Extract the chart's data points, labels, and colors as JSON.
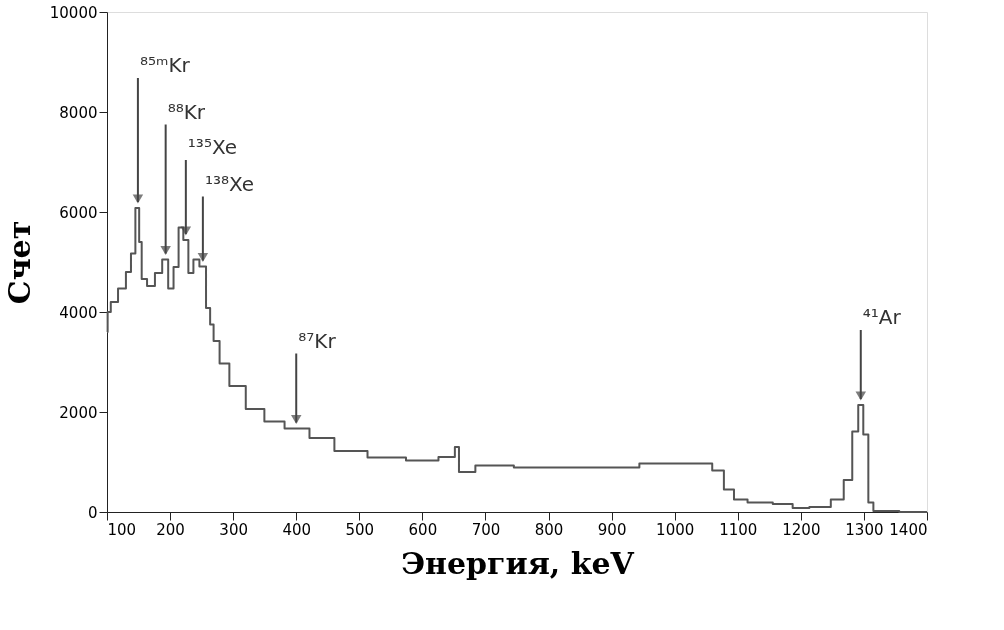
{
  "chart_data": {
    "type": "step",
    "xlabel": "Энергия, keV",
    "ylabel": "Счет",
    "xlim": [
      100,
      1400
    ],
    "ylim": [
      0,
      10000
    ],
    "xticks": [
      100,
      200,
      300,
      400,
      500,
      600,
      700,
      800,
      900,
      1000,
      1100,
      1200,
      1300,
      1400
    ],
    "yticks": [
      0,
      2000,
      4000,
      6000,
      8000,
      10000
    ],
    "grid": false,
    "marker": "none",
    "line_style": "solid",
    "series": [
      {
        "color": "#555555",
        "x": [
          100,
          102,
          110,
          125,
          135,
          141,
          149,
          153,
          157,
          170,
          182,
          193,
          201,
          210,
          217,
          225,
          233,
          241,
          252,
          262,
          265,
          273,
          284,
          304,
          336,
          363,
          400,
          442,
          479,
          547,
          601,
          650,
          653,
          663,
          705,
          785,
          891,
          997,
          1049,
          1070,
          1086,
          1102,
          1129,
          1182,
          1192,
          1235,
          1260,
          1276,
          1287,
          1295,
          1303,
          1311,
          1319,
          1393,
          1400
        ],
        "values": [
          3600,
          4000,
          4200,
          4470,
          4800,
          5170,
          6080,
          5400,
          4660,
          4520,
          4780,
          5050,
          4470,
          4900,
          5690,
          5440,
          4780,
          5050,
          4910,
          4080,
          3750,
          3420,
          2970,
          2520,
          2060,
          1810,
          1670,
          1480,
          1220,
          1090,
          1030,
          1100,
          1300,
          800,
          930,
          890,
          890,
          970,
          970,
          830,
          450,
          250,
          190,
          160,
          80,
          100,
          250,
          640,
          1610,
          2140,
          1550,
          190,
          20,
          0,
          0
        ]
      }
    ],
    "annotations": [
      {
        "text": "⁸⁵ᵐKr",
        "x": 149,
        "y": 6080
      },
      {
        "text": "⁸⁸Kr",
        "x": 193,
        "y": 5050
      },
      {
        "text": "¹³⁵Xe",
        "x": 225,
        "y": 5440
      },
      {
        "text": "¹³⁸Xe",
        "x": 252,
        "y": 4910
      },
      {
        "text": "⁸⁷Kr",
        "x": 400,
        "y": 1670
      },
      {
        "text": "⁴¹Ar",
        "x": 1295,
        "y": 2140
      }
    ]
  }
}
